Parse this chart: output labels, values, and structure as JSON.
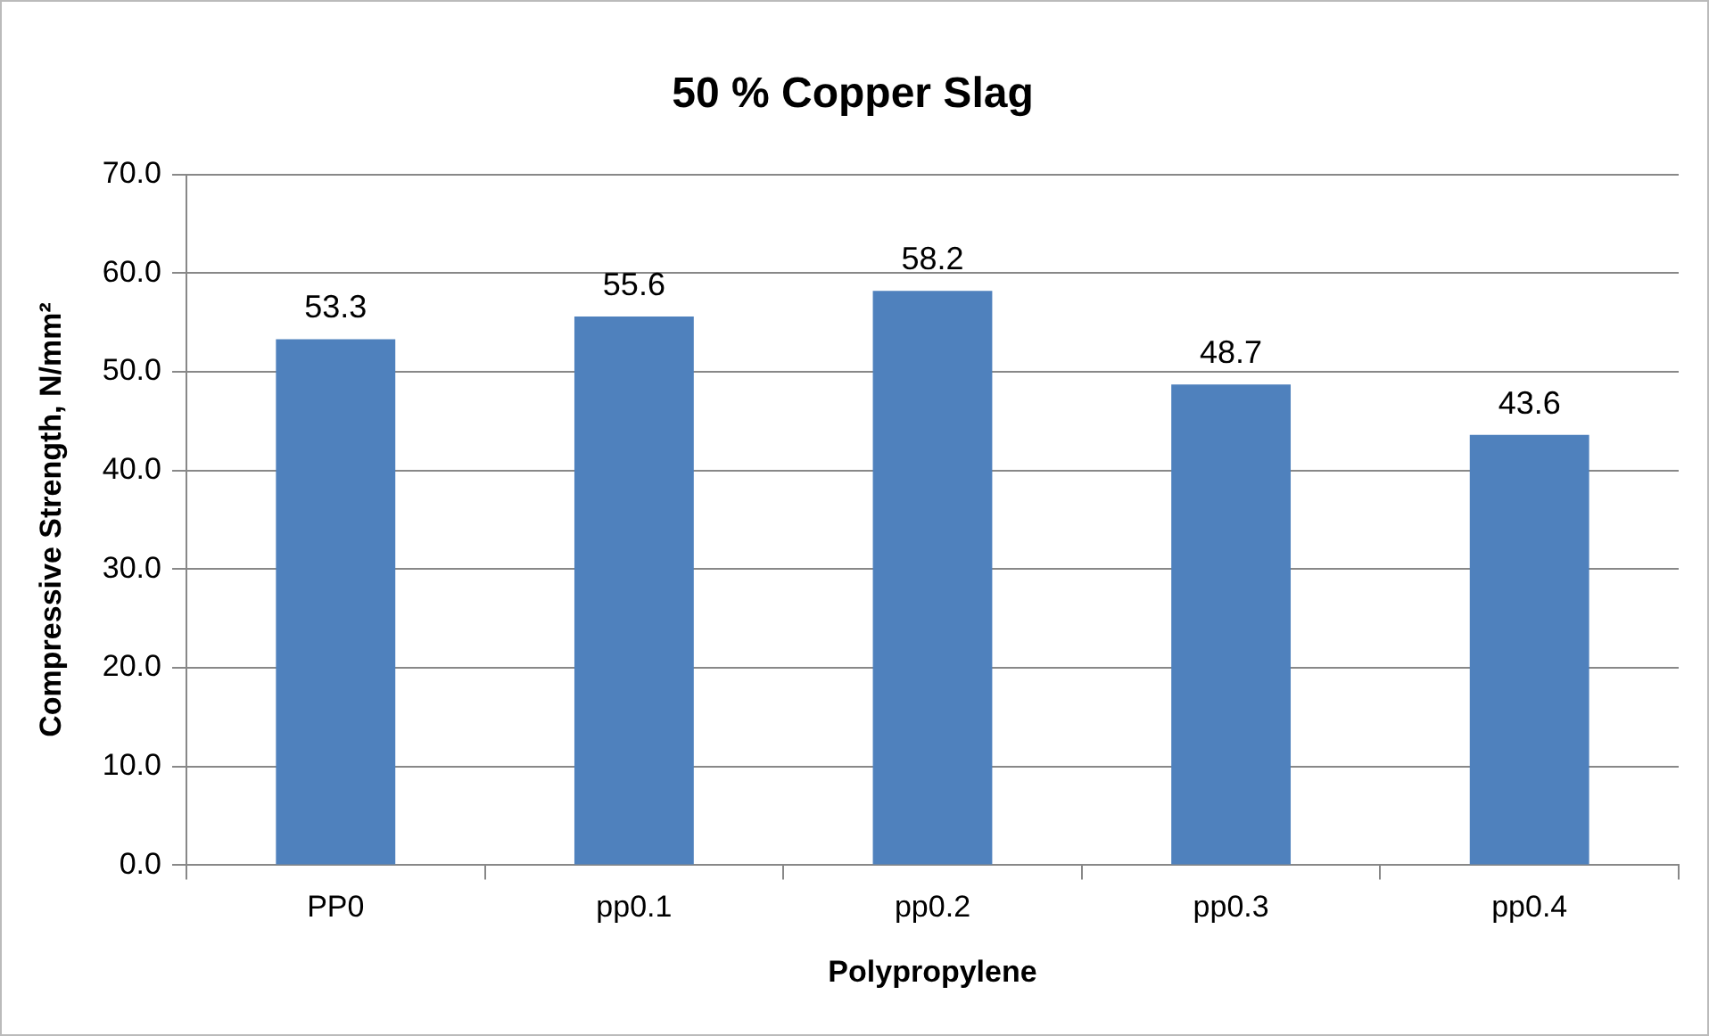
{
  "chart_data": {
    "type": "bar",
    "title": "50 % Copper Slag",
    "xlabel": "Polypropylene",
    "ylabel": "Compressive Strength, N/mm²",
    "categories": [
      "PP0",
      "pp0.1",
      "pp0.2",
      "pp0.3",
      "pp0.4"
    ],
    "values": [
      53.3,
      55.6,
      58.2,
      48.7,
      43.6
    ],
    "color": "#4f81bd",
    "ylim": [
      0,
      70
    ],
    "yticks": [
      {
        "value": 0,
        "label": "0.0"
      },
      {
        "value": 10,
        "label": "10.0"
      },
      {
        "value": 20,
        "label": "20.0"
      },
      {
        "value": 30,
        "label": "30.0"
      },
      {
        "value": 40,
        "label": "40.0"
      },
      {
        "value": 50,
        "label": "50.0"
      },
      {
        "value": 60,
        "label": "60.0"
      },
      {
        "value": 70,
        "label": "70.0"
      }
    ],
    "grid": "y",
    "data_labels": true
  }
}
